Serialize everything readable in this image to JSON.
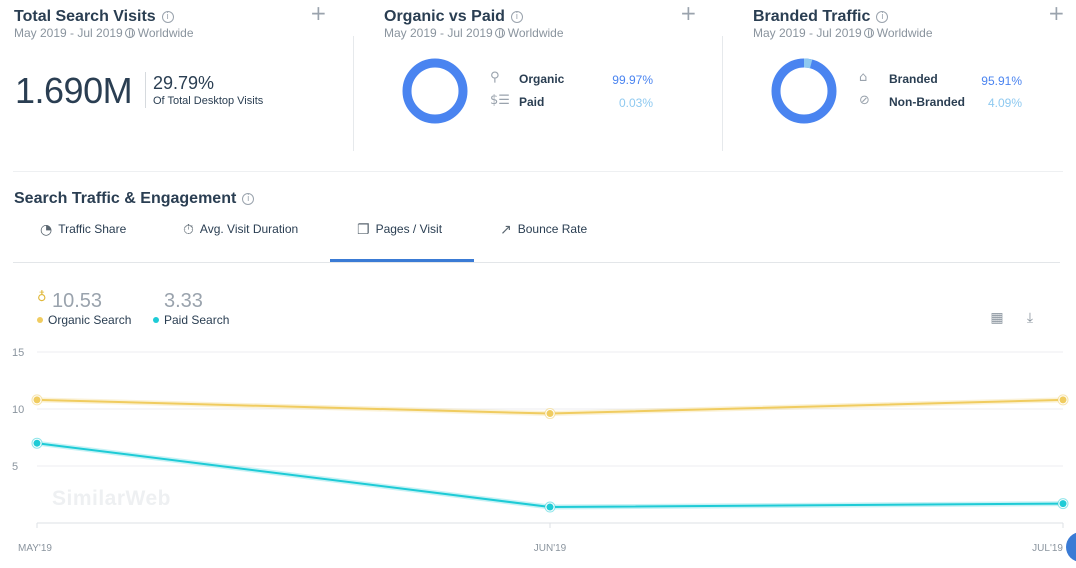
{
  "cards": {
    "total_search": {
      "title": "Total Search Visits",
      "date_range": "May 2019 - Jul 2019",
      "region": "Worldwide",
      "value": "1.690M",
      "share": "29.79%",
      "share_label": "Of Total Desktop Visits"
    },
    "organic_vs_paid": {
      "title": "Organic vs Paid",
      "date_range": "May 2019 - Jul 2019",
      "region": "Worldwide",
      "items": [
        {
          "label": "Organic",
          "value": "99.97%",
          "share": 99.97,
          "icon": "search-icon"
        },
        {
          "label": "Paid",
          "value": "0.03%",
          "share": 0.03,
          "icon": "dollar-list-icon"
        }
      ]
    },
    "branded": {
      "title": "Branded Traffic",
      "date_range": "May 2019 - Jul 2019",
      "region": "Worldwide",
      "items": [
        {
          "label": "Branded",
          "value": "95.91%",
          "share": 95.91,
          "icon": "tag-icon"
        },
        {
          "label": "Non-Branded",
          "value": "4.09%",
          "share": 4.09,
          "icon": "no-tag-icon"
        }
      ]
    }
  },
  "colors": {
    "primary_blue": "#4a84f0",
    "light_blue": "#8ec9f0",
    "organic_yellow": "#f0cc60",
    "paid_teal": "#1ecbd6",
    "tab_active": "#3a7bd5"
  },
  "engagement": {
    "title": "Search Traffic & Engagement",
    "tabs": [
      {
        "label": "Traffic Share",
        "icon": "pie-icon",
        "active": false
      },
      {
        "label": "Avg. Visit Duration",
        "icon": "stopwatch-icon",
        "active": false
      },
      {
        "label": "Pages / Visit",
        "icon": "pages-icon",
        "active": true
      },
      {
        "label": "Bounce Rate",
        "icon": "trend-icon",
        "active": false
      }
    ],
    "kpis": [
      {
        "value": "10.53",
        "label": "Organic Search"
      },
      {
        "value": "3.33",
        "label": "Paid Search"
      }
    ],
    "watermark": "SimilarWeb"
  },
  "chart_data": {
    "type": "line",
    "x": [
      "MAY'19",
      "JUN'19",
      "JUL'19"
    ],
    "yticks": [
      5,
      10,
      15
    ],
    "ylim": [
      0,
      15
    ],
    "grid": true,
    "series": [
      {
        "name": "Organic Search",
        "values": [
          10.8,
          9.6,
          10.8
        ],
        "color": "#f0cc60"
      },
      {
        "name": "Paid Search",
        "values": [
          7.0,
          1.4,
          1.7
        ],
        "color": "#1ecbd6"
      }
    ]
  }
}
